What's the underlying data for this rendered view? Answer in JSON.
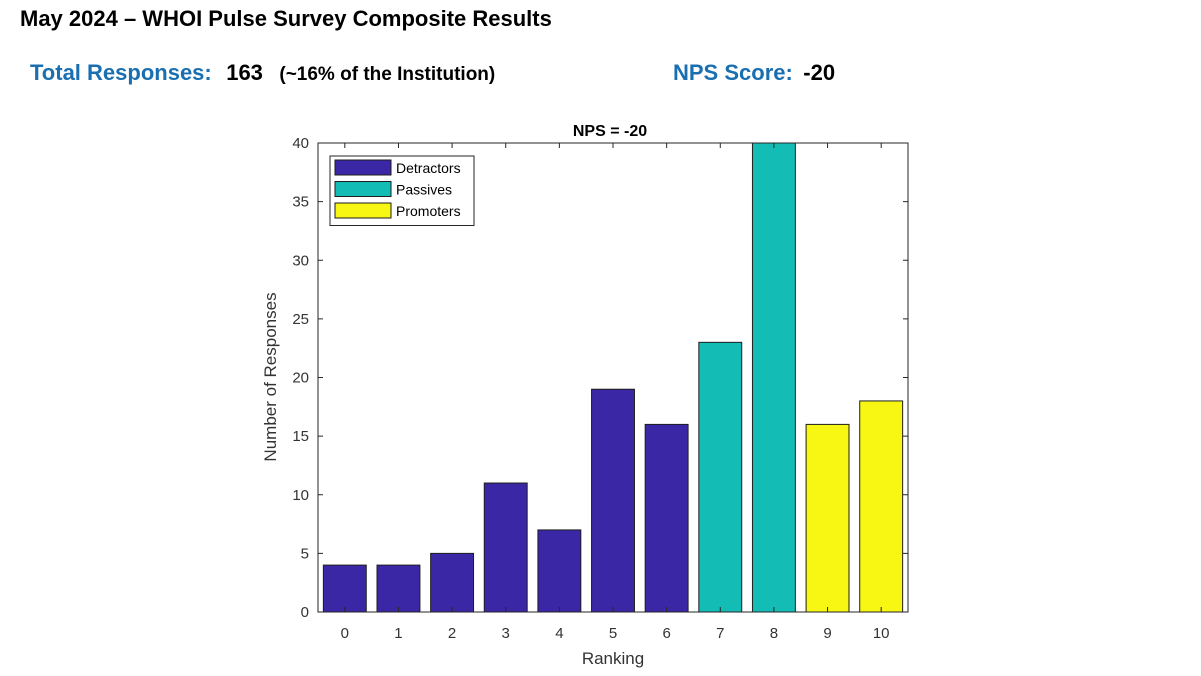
{
  "header": {
    "title": "May 2024 – WHOI Pulse Survey Composite Results"
  },
  "stats": {
    "total_label": "Total Responses:",
    "total_value": "163",
    "total_note": "(~16% of the Institution)",
    "nps_label": "NPS Score:",
    "nps_value": "-20"
  },
  "colors": {
    "accent": "#1a6fb0",
    "detractors": "#3a27a6",
    "passives": "#14bcb6",
    "promoters": "#f7f713"
  },
  "chart_data": {
    "type": "bar",
    "title": "NPS = -20",
    "xlabel": "Ranking",
    "ylabel": "Number of Responses",
    "categories": [
      "0",
      "1",
      "2",
      "3",
      "4",
      "5",
      "6",
      "7",
      "8",
      "9",
      "10"
    ],
    "values": [
      4,
      4,
      5,
      11,
      7,
      19,
      16,
      23,
      40,
      16,
      18
    ],
    "groups": [
      "Detractors",
      "Detractors",
      "Detractors",
      "Detractors",
      "Detractors",
      "Detractors",
      "Detractors",
      "Passives",
      "Passives",
      "Promoters",
      "Promoters"
    ],
    "ylim": [
      0,
      40
    ],
    "yticks": [
      0,
      5,
      10,
      15,
      20,
      25,
      30,
      35,
      40
    ],
    "legend": {
      "position": "top-left",
      "entries": [
        {
          "name": "Detractors",
          "color": "#3a27a6"
        },
        {
          "name": "Passives",
          "color": "#14bcb6"
        },
        {
          "name": "Promoters",
          "color": "#f7f713"
        }
      ]
    },
    "grid": false
  }
}
